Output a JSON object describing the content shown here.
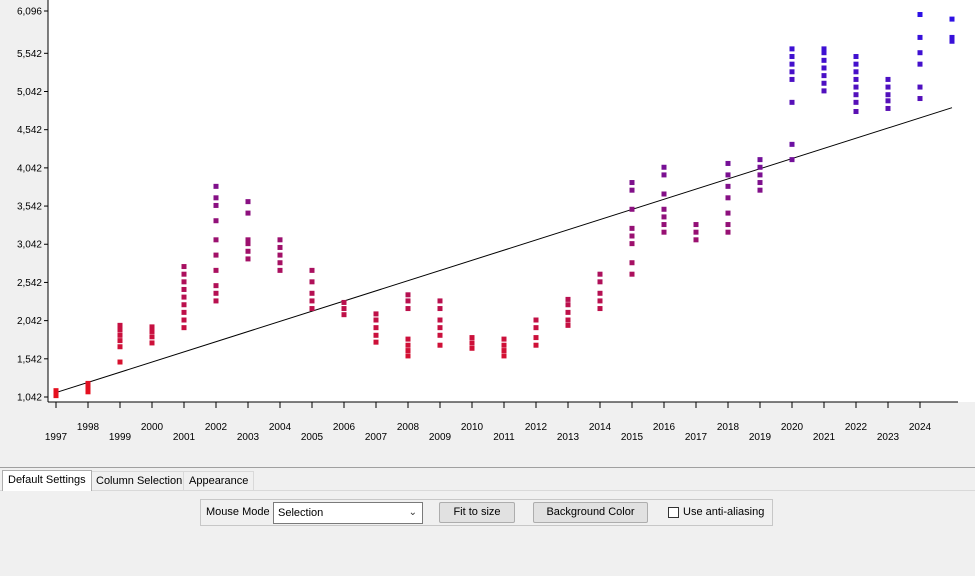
{
  "chart_data": {
    "type": "scatter",
    "title": "",
    "xlabel": "",
    "ylabel": "",
    "xlim": [
      1997,
      2025
    ],
    "ylim": [
      1042,
      6096
    ],
    "y_ticks": [
      "1,042",
      "1,542",
      "2,042",
      "2,542",
      "3,042",
      "3,542",
      "4,042",
      "4,542",
      "5,042",
      "5,542",
      "6,096"
    ],
    "y_tick_values": [
      1042,
      1542,
      2042,
      2542,
      3042,
      3542,
      4042,
      4542,
      5042,
      5542,
      6096
    ],
    "x_ticks": [
      "1997",
      "1998",
      "1999",
      "2000",
      "2001",
      "2002",
      "2003",
      "2004",
      "2005",
      "2006",
      "2007",
      "2008",
      "2009",
      "2010",
      "2011",
      "2012",
      "2013",
      "2014",
      "2015",
      "2016",
      "2017",
      "2018",
      "2019",
      "2020",
      "2021",
      "2022",
      "2023",
      "2024"
    ],
    "color_scale": {
      "low": "#e8101c",
      "high": "#2a10e8"
    },
    "trend_line": {
      "x": [
        1997,
        2025
      ],
      "y": [
        1100,
        4830
      ],
      "color": "#000000"
    },
    "grid": false,
    "legend": "none",
    "series": [
      {
        "points": [
          {
            "x": 1997,
            "y": [
              1060,
              1090,
              1110,
              1125
            ]
          },
          {
            "x": 1998,
            "y": [
              1110,
              1150,
              1190,
              1220
            ]
          },
          {
            "x": 1999,
            "y": [
              1500,
              1700,
              1780,
              1850,
              1920,
              1980
            ]
          },
          {
            "x": 2000,
            "y": [
              1750,
              1830,
              1900,
              1960
            ]
          },
          {
            "x": 2001,
            "y": [
              1950,
              2050,
              2150,
              2250,
              2350,
              2450,
              2550,
              2650,
              2750
            ]
          },
          {
            "x": 2002,
            "y": [
              2300,
              2400,
              2500,
              2700,
              2900,
              3100,
              3350,
              3550,
              3650,
              3800
            ]
          },
          {
            "x": 2003,
            "y": [
              2850,
              2950,
              3050,
              3100,
              3450,
              3600
            ]
          },
          {
            "x": 2004,
            "y": [
              2700,
              2800,
              2900,
              3000,
              3100
            ]
          },
          {
            "x": 2005,
            "y": [
              2200,
              2300,
              2400,
              2550,
              2700
            ]
          },
          {
            "x": 2006,
            "y": [
              2120,
              2200,
              2280
            ]
          },
          {
            "x": 2007,
            "y": [
              1760,
              1850,
              1950,
              2050,
              2130
            ]
          },
          {
            "x": 2008,
            "y": [
              1580,
              1650,
              1720,
              1800,
              2200,
              2300,
              2380
            ]
          },
          {
            "x": 2009,
            "y": [
              1720,
              1850,
              1950,
              2050,
              2200,
              2300
            ]
          },
          {
            "x": 2010,
            "y": [
              1680,
              1750,
              1820
            ]
          },
          {
            "x": 2011,
            "y": [
              1580,
              1650,
              1720,
              1800
            ]
          },
          {
            "x": 2012,
            "y": [
              1720,
              1820,
              1950,
              2050
            ]
          },
          {
            "x": 2013,
            "y": [
              1980,
              2050,
              2150,
              2250,
              2320
            ]
          },
          {
            "x": 2014,
            "y": [
              2200,
              2300,
              2400,
              2550,
              2650
            ]
          },
          {
            "x": 2015,
            "y": [
              2650,
              2800,
              3050,
              3150,
              3250,
              3500,
              3750,
              3850
            ]
          },
          {
            "x": 2016,
            "y": [
              3200,
              3300,
              3400,
              3500,
              3700,
              3950,
              4050
            ]
          },
          {
            "x": 2017,
            "y": [
              3100,
              3200,
              3300
            ]
          },
          {
            "x": 2018,
            "y": [
              3200,
              3300,
              3450,
              3650,
              3800,
              3950,
              4100
            ]
          },
          {
            "x": 2019,
            "y": [
              3750,
              3850,
              3950,
              4050,
              4150
            ]
          },
          {
            "x": 2020,
            "y": [
              4150,
              4350,
              4900,
              5200,
              5300,
              5400,
              5500,
              5600
            ]
          },
          {
            "x": 2021,
            "y": [
              5050,
              5150,
              5250,
              5350,
              5450,
              5550,
              5600
            ]
          },
          {
            "x": 2022,
            "y": [
              4780,
              4900,
              5000,
              5100,
              5200,
              5300,
              5400,
              5500
            ]
          },
          {
            "x": 2023,
            "y": [
              4820,
              4920,
              5000,
              5100,
              5200
            ]
          },
          {
            "x": 2024,
            "y": [
              4950,
              5100,
              5400,
              5550,
              5750,
              6050
            ]
          },
          {
            "x": 2025,
            "y": [
              5700,
              5750,
              5990
            ]
          }
        ]
      }
    ]
  },
  "tabs": [
    "Default Settings",
    "Column Selection",
    "Appearance"
  ],
  "toolbar": {
    "mouse_mode_label": "Mouse Mode",
    "mouse_mode_value": "Selection",
    "fit_label": "Fit to size",
    "bg_color_label": "Background Color",
    "antialias_label": "Use anti-aliasing"
  },
  "icons": {
    "dropdown": "chevron-down-icon",
    "checkbox": "checkbox-icon"
  }
}
